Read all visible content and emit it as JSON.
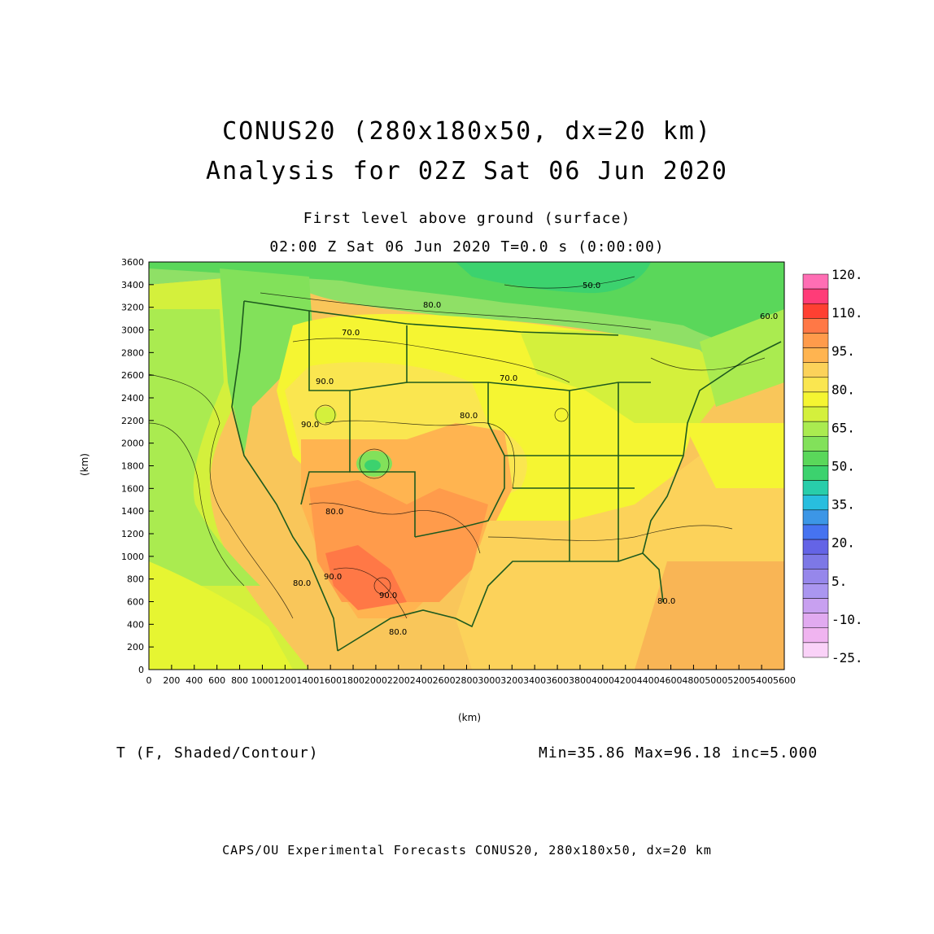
{
  "header": {
    "title_line1": "CONUS20 (280x180x50, dx=20 km)",
    "title_line2": "Analysis for 02Z Sat 06 Jun 2020",
    "subtitle_line1": "First level above ground (surface)",
    "subtitle_line2": "02:00 Z Sat 06 Jun 2020    T=0.0 s (0:00:00)"
  },
  "axes": {
    "x_unit": "(km)",
    "y_unit": "(km)",
    "x_ticks": [
      "0",
      "200",
      "400",
      "600",
      "800",
      "1000",
      "1200",
      "1400",
      "1600",
      "1800",
      "2000",
      "2200",
      "2400",
      "2600",
      "2800",
      "3000",
      "3200",
      "3400",
      "3600",
      "3800",
      "4000",
      "4200",
      "4400",
      "4600",
      "4800",
      "5000",
      "5200",
      "5400",
      "5600"
    ],
    "y_ticks": [
      "0",
      "200",
      "400",
      "600",
      "800",
      "1000",
      "1200",
      "1400",
      "1600",
      "1800",
      "2000",
      "2200",
      "2400",
      "2600",
      "2800",
      "3000",
      "3200",
      "3400",
      "3600"
    ],
    "x_range": [
      0,
      5600
    ],
    "y_range": [
      0,
      3600
    ]
  },
  "colorbar": {
    "labels": [
      "120.",
      "110.",
      "95.",
      "80.",
      "65.",
      "50.",
      "35.",
      "20.",
      "5.",
      "-10.",
      "-25."
    ],
    "colors": [
      "#ff6eb4",
      "#ff3c78",
      "#ff4032",
      "#ff7846",
      "#ff9b4b",
      "#ffb450",
      "#fcd25a",
      "#fae650",
      "#f5f532",
      "#d4f03c",
      "#aaeb50",
      "#82e15a",
      "#5ad75a",
      "#3cd26e",
      "#28cdaa",
      "#28bede",
      "#3c96e6",
      "#4673f0",
      "#6464e6",
      "#7d78e6",
      "#9687eb",
      "#aa96f0",
      "#c8a0f0",
      "#e1aaf0",
      "#f0b4f0",
      "#fad2f8"
    ]
  },
  "contour_labels": [
    "80.0",
    "70.0",
    "50.0",
    "60.0",
    "80.0",
    "90.0",
    "70.0",
    "80.0",
    "90.0",
    "90.0",
    "80.0",
    "80.0",
    "90.0",
    "80.0"
  ],
  "field_info": "T (F, Shaded/Contour)",
  "stats": "Min=35.86  Max=96.18  inc=5.000",
  "footer": "CAPS/OU Experimental Forecasts  CONUS20, 280x180x50, dx=20 km"
}
